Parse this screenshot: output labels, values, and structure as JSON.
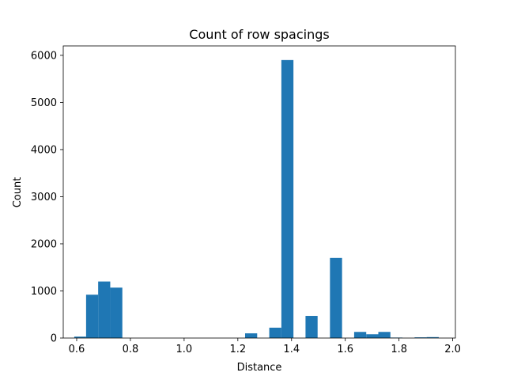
{
  "chart_data": {
    "type": "bar",
    "title": "Count of row spacings",
    "xlabel": "Distance",
    "ylabel": "Count",
    "xlim": [
      0.55,
      2.01
    ],
    "ylim": [
      0,
      6200
    ],
    "xticks": [
      0.6,
      0.8,
      1.0,
      1.2,
      1.4,
      1.6,
      1.8,
      2.0
    ],
    "xtick_labels": [
      "0.6",
      "0.8",
      "1.0",
      "1.2",
      "1.4",
      "1.6",
      "1.8",
      "2.0"
    ],
    "yticks": [
      0,
      1000,
      2000,
      3000,
      4000,
      5000,
      6000
    ],
    "ytick_labels": [
      "0",
      "1000",
      "2000",
      "3000",
      "4000",
      "5000",
      "6000"
    ],
    "grid": false,
    "color": "#1f77b4",
    "bins": [
      {
        "x0": 0.591,
        "x1": 0.635,
        "count": 30
      },
      {
        "x0": 0.635,
        "x1": 0.68,
        "count": 920
      },
      {
        "x0": 0.68,
        "x1": 0.725,
        "count": 1200
      },
      {
        "x0": 0.725,
        "x1": 0.77,
        "count": 1070
      },
      {
        "x0": 1.227,
        "x1": 1.272,
        "count": 100
      },
      {
        "x0": 1.317,
        "x1": 1.362,
        "count": 220
      },
      {
        "x0": 1.362,
        "x1": 1.407,
        "count": 5900
      },
      {
        "x0": 1.452,
        "x1": 1.497,
        "count": 470
      },
      {
        "x0": 1.543,
        "x1": 1.588,
        "count": 1700
      },
      {
        "x0": 1.633,
        "x1": 1.678,
        "count": 130
      },
      {
        "x0": 1.678,
        "x1": 1.723,
        "count": 80
      },
      {
        "x0": 1.723,
        "x1": 1.768,
        "count": 130
      },
      {
        "x0": 1.768,
        "x1": 1.813,
        "count": 10
      },
      {
        "x0": 1.858,
        "x1": 1.903,
        "count": 15
      },
      {
        "x0": 1.903,
        "x1": 1.948,
        "count": 20
      }
    ]
  }
}
